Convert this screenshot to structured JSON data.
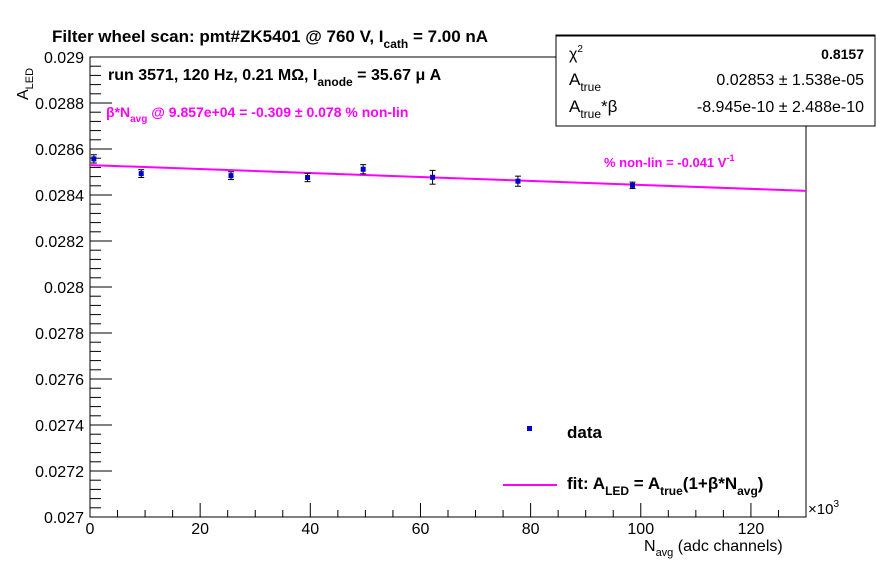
{
  "chart_data": {
    "type": "scatter",
    "title": "Filter wheel scan: pmt#ZK5401 @   760 V, I",
    "title_sub": "cath",
    "title_tail": " = 7.00 nA",
    "run_info": "run 3571, 120 Hz, 0.21 MΩ, I",
    "run_info_sub": "anode",
    "run_info_tail": " = 35.67 μ A",
    "nonlin_main": "β*N",
    "nonlin_sub": "avg",
    "nonlin_tail": " @ 9.857e+04 = -0.309 ± 0.078 % non-lin",
    "slope_label": "% non-lin = -0.041 V",
    "slope_sup": "-1",
    "ylabel_main": "A",
    "ylabel_sub": "LED",
    "xlabel_main": "N",
    "xlabel_sub": "avg",
    "xlabel_tail": " (adc channels)",
    "x_multiplier": "×10",
    "x_multiplier_exp": "3",
    "xlim": [
      0,
      130000
    ],
    "ylim": [
      0.027,
      0.029
    ],
    "x_ticks": [
      0,
      20000,
      40000,
      60000,
      80000,
      100000,
      120000
    ],
    "x_tick_labels": [
      "0",
      "20",
      "40",
      "60",
      "80",
      "100",
      "120"
    ],
    "y_ticks": [
      0.027,
      0.0272,
      0.0274,
      0.0276,
      0.0278,
      0.028,
      0.0282,
      0.0284,
      0.0286,
      0.0288,
      0.029
    ],
    "y_tick_labels": [
      "0.027",
      "0.0272",
      "0.0274",
      "0.0276",
      "0.0278",
      "0.028",
      "0.0282",
      "0.0284",
      "0.0286",
      "0.0288",
      "0.029"
    ],
    "grid": false,
    "series": [
      {
        "name": "data",
        "color": "#0000cc",
        "points": [
          {
            "x": 700,
            "y": 0.028557,
            "err": 1.8e-05
          },
          {
            "x": 9300,
            "y": 0.028493,
            "err": 1.7e-05
          },
          {
            "x": 25600,
            "y": 0.028484,
            "err": 1.7e-05
          },
          {
            "x": 39500,
            "y": 0.028476,
            "err": 1.8e-05
          },
          {
            "x": 49600,
            "y": 0.028512,
            "err": 2e-05
          },
          {
            "x": 62200,
            "y": 0.028477,
            "err": 3e-05
          },
          {
            "x": 77700,
            "y": 0.02846,
            "err": 2.2e-05
          },
          {
            "x": 98500,
            "y": 0.028442,
            "err": 1.4e-05
          }
        ]
      }
    ],
    "fit": {
      "color": "#ff00ff",
      "x_start": 0,
      "x_end": 130000,
      "y_start": 0.02853,
      "y_end": 0.028418
    },
    "legend": {
      "position": "bottom-right",
      "data_label": "data",
      "fit_label_a": "fit: A",
      "fit_label_a_sub": "LED",
      "fit_label_b": " = A",
      "fit_label_b_sub": "true",
      "fit_label_c": "(1+β*N",
      "fit_label_c_sub": "avg",
      "fit_label_d": ")"
    },
    "stats": {
      "position": "top-right",
      "chi2_label": "χ",
      "chi2_sup": "2",
      "chi2_value": "0.8157",
      "atrue_label": "A",
      "atrue_sub": "true",
      "atrue_value": "0.02853 ± 1.538e-05",
      "beta_label": "A",
      "beta_sub": "true",
      "beta_tail": "*β",
      "beta_value": "-8.945e-10 ± 2.488e-10"
    }
  }
}
